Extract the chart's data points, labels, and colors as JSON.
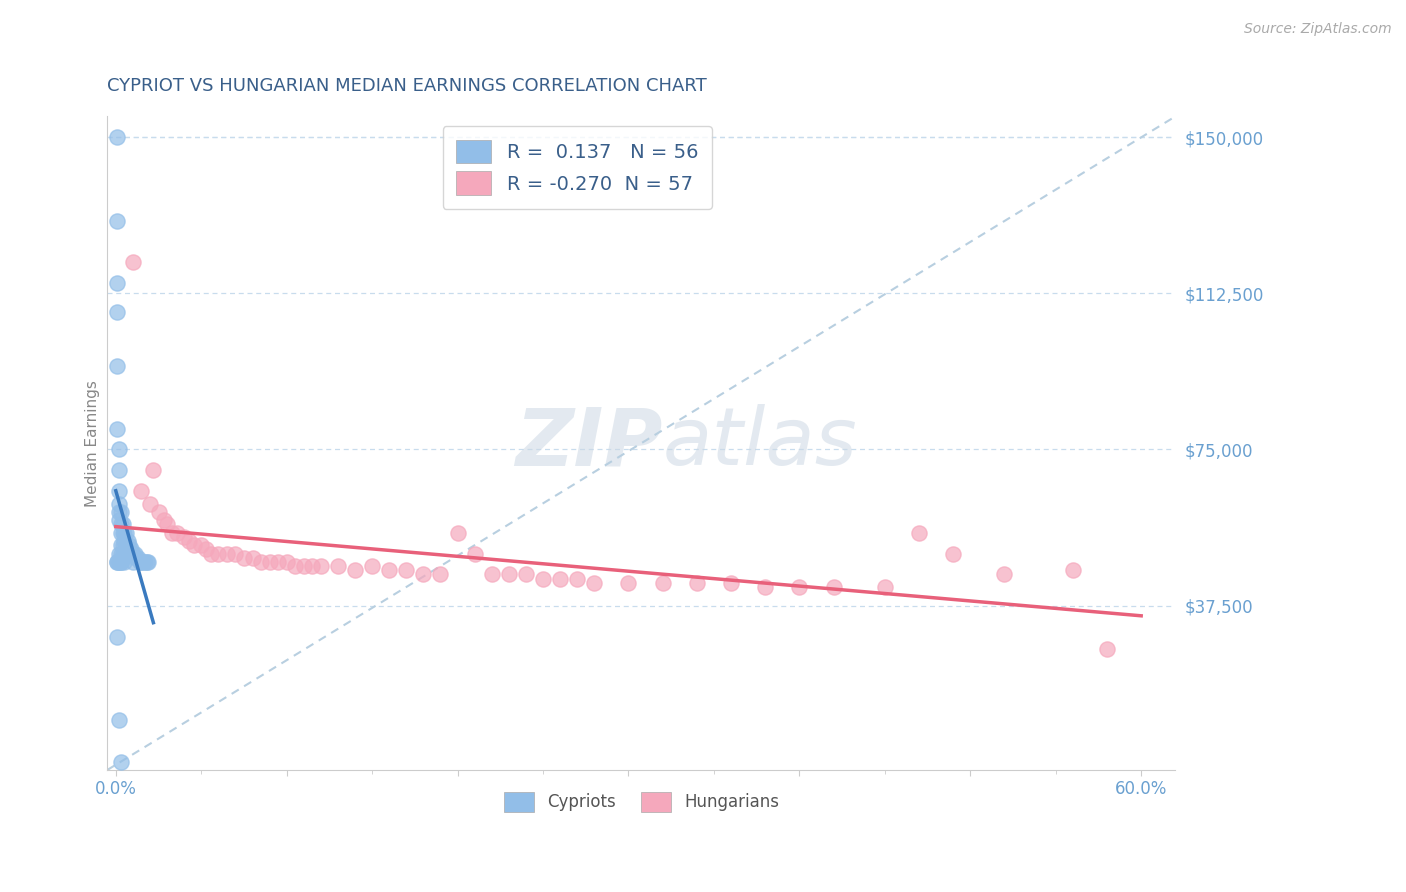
{
  "title": "CYPRIOT VS HUNGARIAN MEDIAN EARNINGS CORRELATION CHART",
  "source": "Source: ZipAtlas.com",
  "ylabel": "Median Earnings",
  "xlim": [
    -0.005,
    0.62
  ],
  "ylim": [
    -2000,
    155000
  ],
  "yticks": [
    0,
    37500,
    75000,
    112500,
    150000
  ],
  "ytick_labels": [
    "",
    "$37,500",
    "$75,000",
    "$112,500",
    "$150,000"
  ],
  "xtick_left_label": "0.0%",
  "xtick_right_label": "60.0%",
  "cypriot_color": "#92bee8",
  "hungarian_color": "#f5a8bc",
  "cypriot_line_color": "#3a7abf",
  "hungarian_line_color": "#e8607a",
  "diag_line_color": "#b8cfe0",
  "cypriot_R": 0.137,
  "cypriot_N": 56,
  "hungarian_R": -0.27,
  "hungarian_N": 57,
  "title_color": "#3a5f8a",
  "tick_color": "#6aa0d0",
  "grid_color": "#c8dced",
  "legend_text_color": "#3a5f8a",
  "watermark_color": "#ccd8e4",
  "source_color": "#aaaaaa",
  "ylabel_color": "#888888",
  "cypriot_x": [
    0.001,
    0.001,
    0.001,
    0.001,
    0.001,
    0.001,
    0.002,
    0.002,
    0.002,
    0.002,
    0.002,
    0.002,
    0.002,
    0.003,
    0.003,
    0.003,
    0.003,
    0.003,
    0.003,
    0.004,
    0.004,
    0.004,
    0.004,
    0.005,
    0.005,
    0.005,
    0.005,
    0.006,
    0.006,
    0.006,
    0.007,
    0.007,
    0.007,
    0.008,
    0.008,
    0.009,
    0.009,
    0.01,
    0.01,
    0.011,
    0.012,
    0.013,
    0.014,
    0.015,
    0.016,
    0.017,
    0.018,
    0.019,
    0.001,
    0.002,
    0.003,
    0.001,
    0.002,
    0.003,
    0.001,
    0.002
  ],
  "cypriot_y": [
    150000,
    130000,
    115000,
    108000,
    95000,
    80000,
    75000,
    70000,
    65000,
    62000,
    60000,
    58000,
    50000,
    60000,
    57000,
    55000,
    52000,
    50000,
    48000,
    57000,
    55000,
    52000,
    50000,
    55000,
    53000,
    50000,
    48000,
    55000,
    52000,
    50000,
    53000,
    51000,
    50000,
    52000,
    50000,
    51000,
    50000,
    50000,
    48000,
    50000,
    49000,
    49000,
    48000,
    48000,
    48000,
    48000,
    48000,
    48000,
    48000,
    48000,
    48000,
    30000,
    10000,
    0,
    48000,
    48000
  ],
  "hungarian_x": [
    0.01,
    0.015,
    0.02,
    0.022,
    0.025,
    0.028,
    0.03,
    0.033,
    0.036,
    0.04,
    0.043,
    0.046,
    0.05,
    0.053,
    0.056,
    0.06,
    0.065,
    0.07,
    0.075,
    0.08,
    0.085,
    0.09,
    0.095,
    0.1,
    0.105,
    0.11,
    0.115,
    0.12,
    0.13,
    0.14,
    0.15,
    0.16,
    0.17,
    0.18,
    0.19,
    0.2,
    0.21,
    0.22,
    0.23,
    0.24,
    0.25,
    0.26,
    0.27,
    0.28,
    0.3,
    0.32,
    0.34,
    0.36,
    0.38,
    0.4,
    0.42,
    0.45,
    0.47,
    0.49,
    0.52,
    0.56,
    0.58
  ],
  "hungarian_y": [
    120000,
    65000,
    62000,
    70000,
    60000,
    58000,
    57000,
    55000,
    55000,
    54000,
    53000,
    52000,
    52000,
    51000,
    50000,
    50000,
    50000,
    50000,
    49000,
    49000,
    48000,
    48000,
    48000,
    48000,
    47000,
    47000,
    47000,
    47000,
    47000,
    46000,
    47000,
    46000,
    46000,
    45000,
    45000,
    55000,
    50000,
    45000,
    45000,
    45000,
    44000,
    44000,
    44000,
    43000,
    43000,
    43000,
    43000,
    43000,
    42000,
    42000,
    42000,
    42000,
    55000,
    50000,
    45000,
    46000,
    27000
  ]
}
